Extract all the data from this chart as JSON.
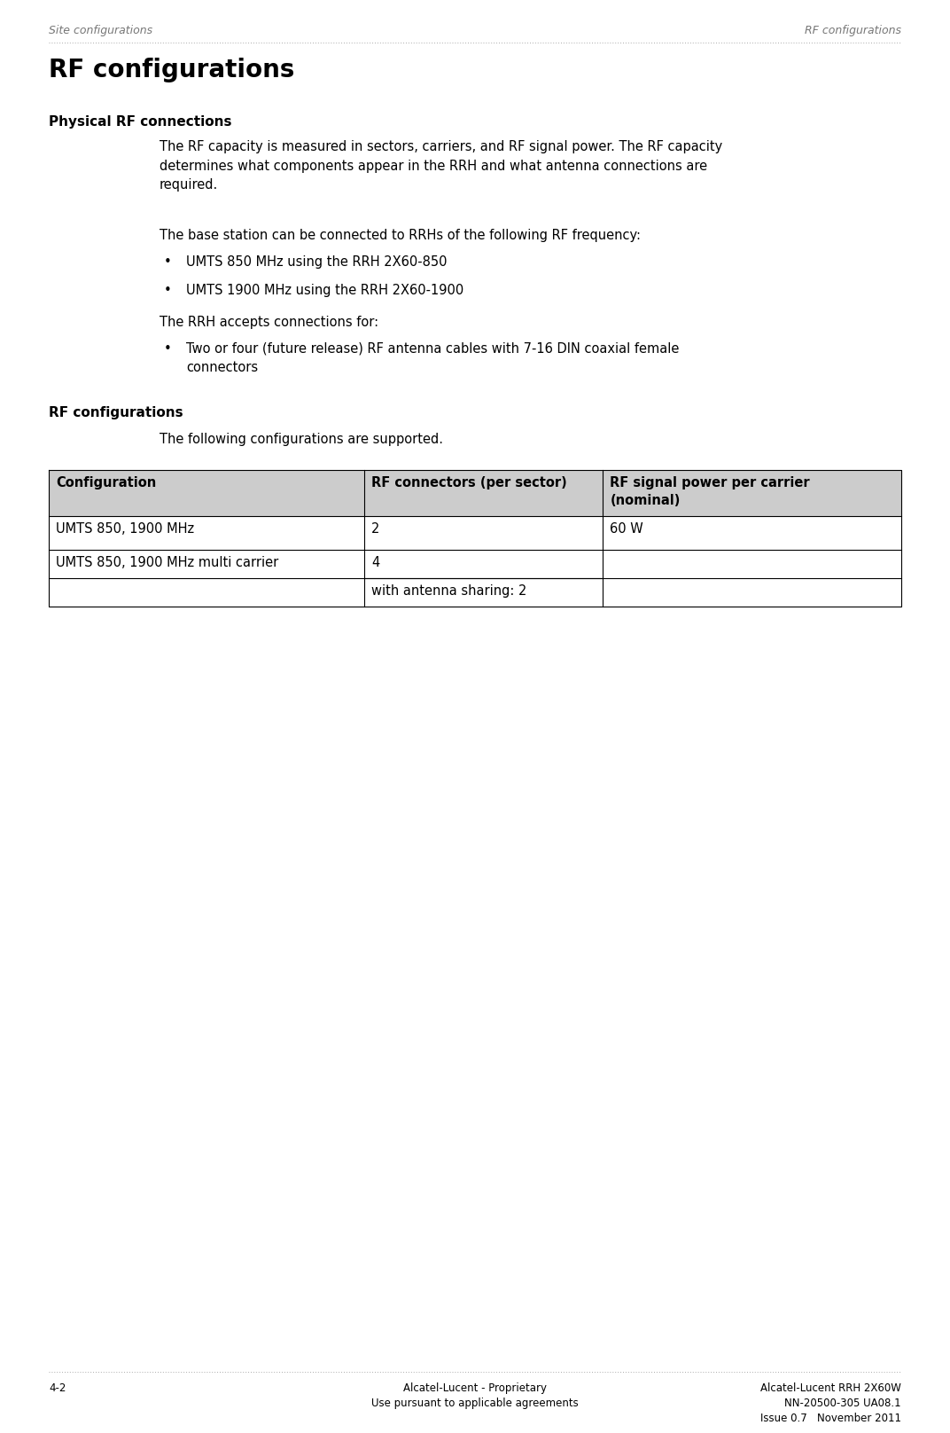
{
  "page_bg": "#ffffff",
  "header_left": "Site configurations",
  "header_right": "RF configurations",
  "dotted_line_color": "#aaaaaa",
  "main_title": "RF configurations",
  "main_title_fontsize": 20,
  "section1_title": "Physical RF connections",
  "section1_title_fontsize": 11,
  "body_fontsize": 10.5,
  "para1": "The RF capacity is measured in sectors, carriers, and RF signal power. The RF capacity\ndetermines what components appear in the RRH and what antenna connections are\nrequired.",
  "para2": "The base station can be connected to RRHs of the following RF frequency:",
  "bullet1": "UMTS 850 MHz using the RRH 2X60-850",
  "bullet2": "UMTS 1900 MHz using the RRH 2X60-1900",
  "para3": "The RRH accepts connections for:",
  "bullet3_line1": "Two or four (future release) RF antenna cables with 7-16 DIN coaxial female",
  "bullet3_line2": "connectors",
  "section2_title": "RF configurations",
  "section2_title_fontsize": 11,
  "para4": "The following configurations are supported.",
  "table_header_bg": "#cccccc",
  "table_row_bg": "#ffffff",
  "table_border_color": "#000000",
  "table_col1_header": "Configuration",
  "table_col2_header": "RF connectors (per sector)",
  "table_col3_header": "RF signal power per carrier\n(nominal)",
  "table_row1_col1": "UMTS 850, 1900 MHz",
  "table_row1_col2": "2",
  "table_row1_col3": "60 W",
  "table_row2_col1": "UMTS 850, 1900 MHz multi carrier",
  "table_row2_col2": "4",
  "table_row3_col2": "with antenna sharing: 2",
  "footer_left": "4-2",
  "footer_center1": "Alcatel-Lucent - Proprietary",
  "footer_center2": "Use pursuant to applicable agreements",
  "footer_right1": "Alcatel-Lucent RRH 2X60W",
  "footer_right2": "NN-20500-305 UA08.1",
  "footer_right3": "Issue 0.7   November 2011",
  "footer_fontsize": 8.5,
  "header_fontsize": 9
}
